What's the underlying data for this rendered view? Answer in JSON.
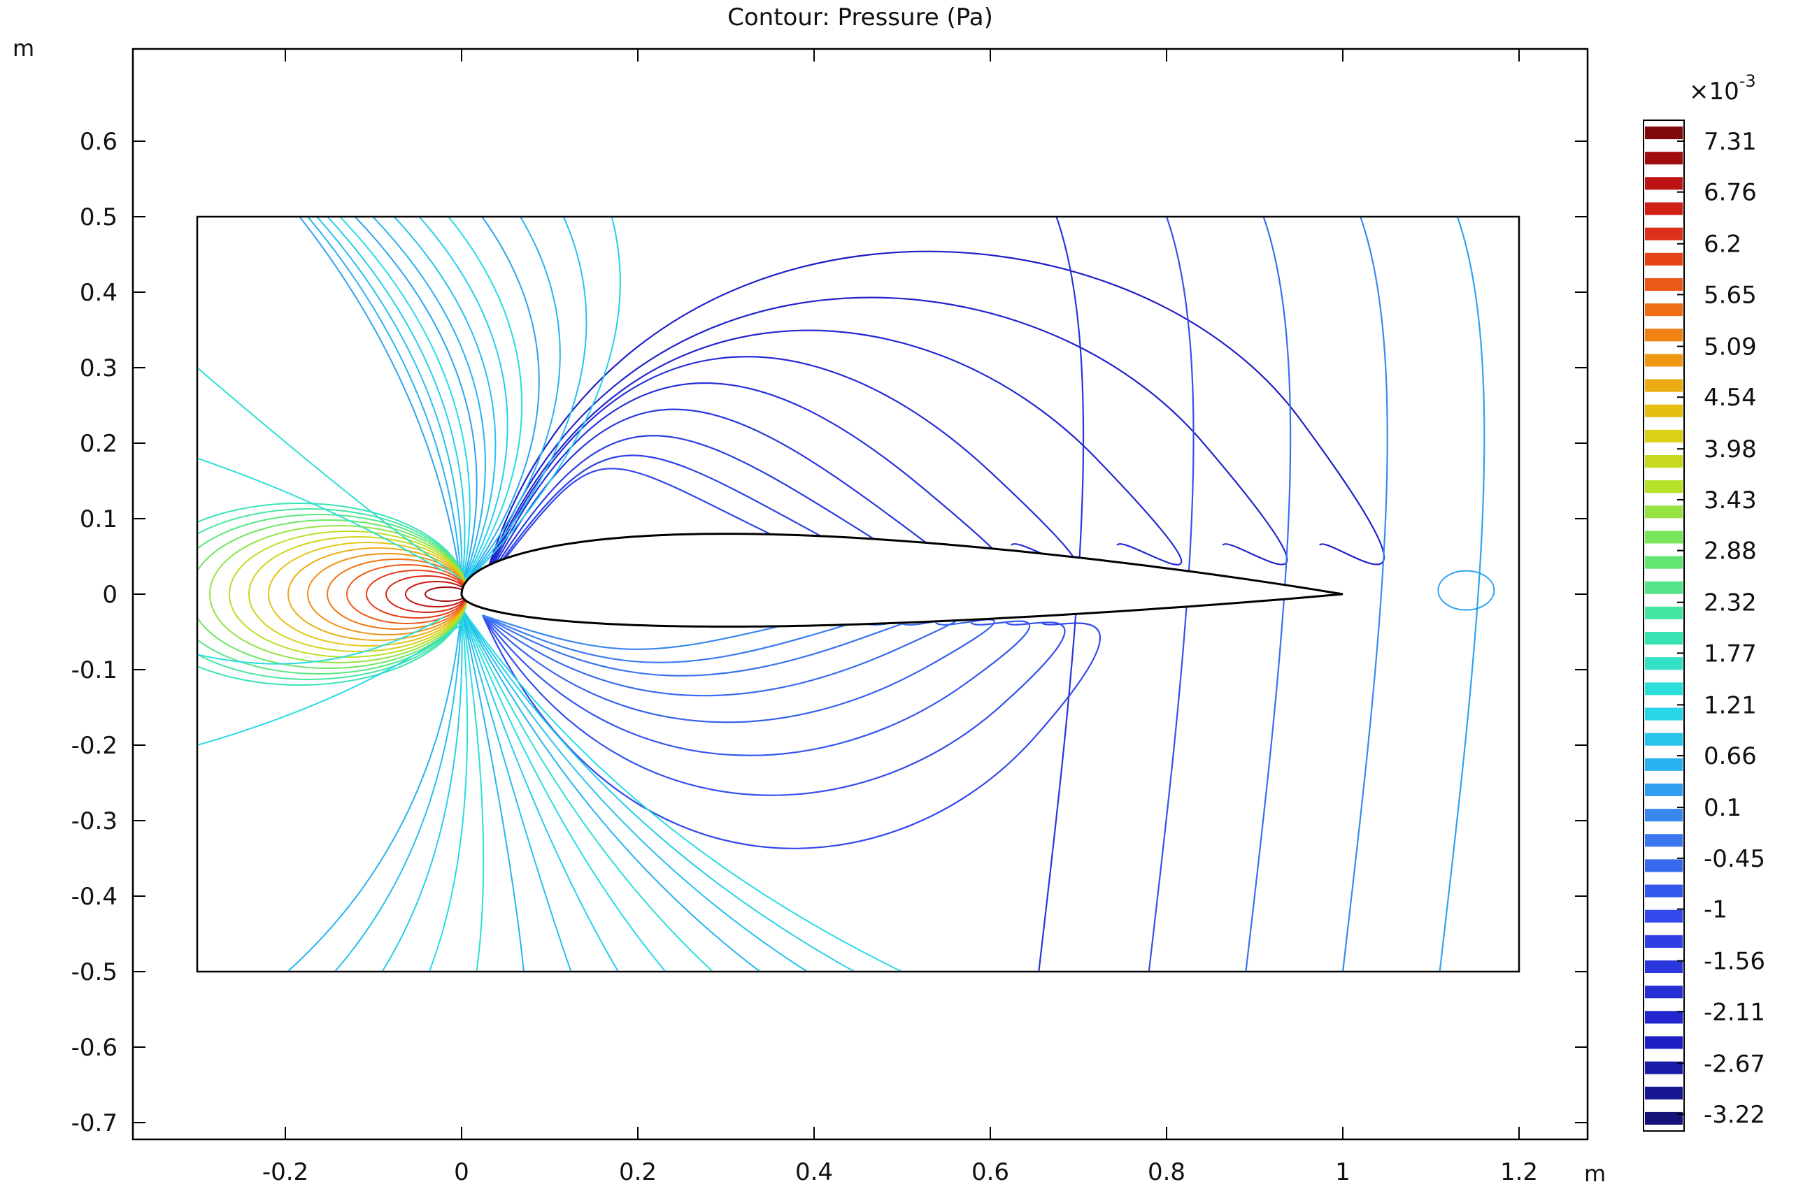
{
  "chart_data": {
    "type": "contour",
    "title": "Contour: Pressure (Pa)",
    "x_unit": "m",
    "y_unit": "m",
    "xlim": [
      -0.4,
      1.28
    ],
    "ylim": [
      -0.72,
      0.72
    ],
    "x_ticks": [
      -0.2,
      0,
      0.2,
      0.4,
      0.6,
      0.8,
      1,
      1.2
    ],
    "x_tick_labels": [
      "-0.2",
      "0",
      "0.2",
      "0.4",
      "0.6",
      "0.8",
      "1",
      "1.2"
    ],
    "y_ticks": [
      0.6,
      0.5,
      0.4,
      0.3,
      0.2,
      0.1,
      0,
      -0.1,
      -0.2,
      -0.3,
      -0.4,
      -0.5,
      -0.6,
      -0.7
    ],
    "y_tick_labels": [
      "0.6",
      "0.5",
      "0.4",
      "0.3",
      "0.2",
      "0.1",
      "0",
      "-0.1",
      "-0.2",
      "-0.3",
      "-0.4",
      "-0.5",
      "-0.6",
      "-0.7"
    ],
    "domain_rect": {
      "x": [
        -0.3,
        1.2
      ],
      "y": [
        -0.5,
        0.5
      ]
    },
    "airfoil": {
      "leading_edge": [
        0,
        0
      ],
      "trailing_edge": [
        1,
        0
      ],
      "max_thickness_upper": 0.08,
      "max_thickness_lower": -0.043
    },
    "colorbar": {
      "exponent_label": "×10",
      "exponent": "-3",
      "range": [
        -3.22,
        7.31
      ],
      "tick_values": [
        7.31,
        6.76,
        6.2,
        5.65,
        5.09,
        4.54,
        3.98,
        3.43,
        2.88,
        2.32,
        1.77,
        1.21,
        0.66,
        0.1,
        -0.45,
        -1,
        -1.56,
        -2.11,
        -2.67,
        -3.22
      ],
      "tick_labels": [
        "7.31",
        "6.76",
        "6.2",
        "5.65",
        "5.09",
        "4.54",
        "3.98",
        "3.43",
        "2.88",
        "2.32",
        "1.77",
        "1.21",
        "0.66",
        "0.1",
        "-0.45",
        "-1",
        "-1.56",
        "-2.11",
        "-2.67",
        "-3.22"
      ],
      "levels": 40,
      "colormap": "rainbow"
    },
    "grid": false
  }
}
